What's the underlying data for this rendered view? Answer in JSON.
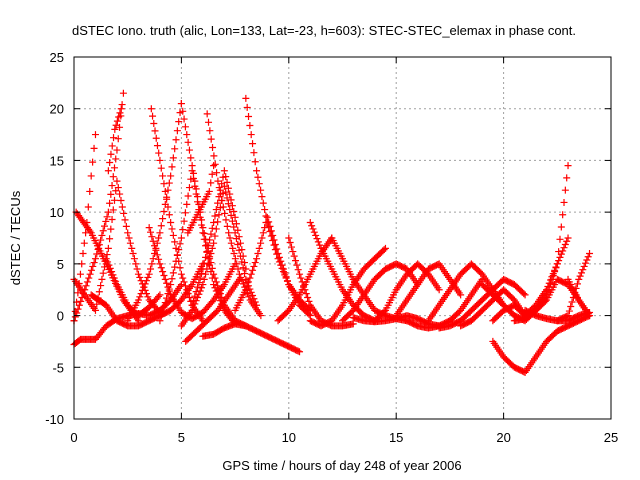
{
  "chart_data": {
    "type": "scatter",
    "title": "dSTEC Iono. truth (alic, Lon=133, Lat=-23, h=603): STEC-STEC_elemax in phase cont.",
    "xlabel": "GPS time / hours of day 248 of year 2006",
    "ylabel": "dSTEC  / TECUs",
    "xlim": [
      0,
      25
    ],
    "ylim": [
      -10,
      25
    ],
    "xticks": [
      0,
      5,
      10,
      15,
      20,
      25
    ],
    "yticks": [
      -10,
      -5,
      0,
      5,
      10,
      15,
      20,
      25
    ],
    "grid": true,
    "marker": "+",
    "color": "#ff0000",
    "series": [
      {
        "x": [
          0.0,
          0.3,
          0.6,
          0.8,
          1.0
        ],
        "y": [
          -0.5,
          4.0,
          9.0,
          13.5,
          17.5
        ]
      },
      {
        "x": [
          0.0,
          0.5,
          1.0,
          1.6,
          2.0,
          2.3
        ],
        "y": [
          -0.5,
          2.5,
          5.5,
          10.0,
          16.0,
          21.5
        ]
      },
      {
        "x": [
          1.6,
          1.9,
          2.2
        ],
        "y": [
          14.0,
          18.0,
          20.0
        ]
      },
      {
        "x": [
          0.1,
          0.8,
          1.5,
          2.3,
          3.0
        ],
        "y": [
          10.0,
          8.0,
          5.0,
          1.5,
          -0.5
        ]
      },
      {
        "x": [
          0.0,
          0.5,
          1.0,
          1.6,
          2.0,
          2.5,
          3.0,
          3.5,
          4.0
        ],
        "y": [
          3.5,
          2.0,
          0.5,
          6.5,
          13.0,
          8.0,
          4.0,
          1.5,
          0.3
        ]
      },
      {
        "x": [
          0.0,
          0.3,
          1.0,
          1.5,
          2.0,
          2.5,
          3.0,
          3.5,
          4.0,
          4.5,
          5.0
        ],
        "y": [
          -2.8,
          -2.3,
          -2.3,
          -1.0,
          -0.3,
          0.0,
          0.2,
          0.0,
          0.5,
          1.5,
          3.0
        ]
      },
      {
        "x": [
          1.5,
          2.0,
          2.5,
          3.0,
          3.5,
          4.0
        ],
        "y": [
          5.5,
          3.0,
          1.0,
          0.0,
          0.8,
          2.0
        ]
      },
      {
        "x": [
          0.8,
          1.5,
          2.0,
          2.5,
          3.0,
          3.5,
          4.0,
          4.5,
          5.0,
          5.5,
          6.0
        ],
        "y": [
          2.0,
          1.0,
          -0.5,
          -1.0,
          -1.0,
          -0.5,
          0.0,
          0.5,
          1.5,
          3.0,
          5.0
        ]
      },
      {
        "x": [
          2.5,
          3.0,
          3.5,
          4.0,
          4.5,
          5.0
        ],
        "y": [
          -0.5,
          1.5,
          4.0,
          8.0,
          13.5,
          20.5
        ]
      },
      {
        "x": [
          3.6,
          4.0,
          4.5,
          5.0,
          5.5,
          6.0
        ],
        "y": [
          20.0,
          15.0,
          9.0,
          4.0,
          1.0,
          -0.5
        ]
      },
      {
        "x": [
          3.5,
          4.0,
          4.5,
          5.0,
          5.5,
          6.0,
          6.5,
          7.0,
          7.5
        ],
        "y": [
          8.5,
          5.0,
          2.0,
          0.3,
          -0.3,
          0.3,
          1.5,
          3.0,
          5.0
        ]
      },
      {
        "x": [
          4.0,
          4.5,
          5.0,
          5.5,
          6.0,
          6.5,
          7.0,
          7.5
        ],
        "y": [
          -0.5,
          3.0,
          7.5,
          14.0,
          8.0,
          3.0,
          0.5,
          -0.8
        ]
      },
      {
        "x": [
          5.0,
          5.5,
          6.0,
          6.5,
          7.0,
          7.5,
          8.0
        ],
        "y": [
          20.5,
          14.5,
          8.5,
          4.0,
          1.0,
          -0.5,
          -1.0
        ]
      },
      {
        "x": [
          5.0,
          5.5,
          6.0,
          6.5,
          7.0,
          7.5,
          8.0,
          8.5
        ],
        "y": [
          -1.0,
          0.5,
          3.0,
          7.0,
          12.5,
          8.0,
          3.5,
          1.0
        ]
      },
      {
        "x": [
          5.5,
          6.0,
          6.5,
          7.0,
          7.5,
          8.0
        ],
        "y": [
          1.0,
          4.5,
          9.0,
          14.0,
          9.5,
          4.5
        ]
      },
      {
        "x": [
          6.2,
          6.7,
          7.2,
          7.7,
          8.2,
          8.7
        ],
        "y": [
          19.5,
          13.0,
          8.0,
          4.0,
          1.5,
          0.0
        ]
      },
      {
        "x": [
          5.3,
          5.8,
          6.3,
          6.5
        ],
        "y": [
          8.0,
          10.0,
          12.0,
          14.5
        ]
      },
      {
        "x": [
          5.2,
          5.7,
          6.2,
          6.7,
          7.2,
          7.7
        ],
        "y": [
          -2.5,
          -1.5,
          -0.5,
          0.5,
          2.0,
          3.5
        ]
      },
      {
        "x": [
          6.0,
          6.5,
          7.0,
          7.5,
          8.0,
          8.5,
          9.0,
          9.5,
          10.0,
          10.5
        ],
        "y": [
          -2.0,
          -1.8,
          -1.2,
          -0.8,
          -1.0,
          -1.5,
          -2.0,
          -2.5,
          -3.0,
          -3.5
        ]
      },
      {
        "x": [
          8.0,
          8.5,
          9.0,
          9.5,
          10.0,
          10.5,
          11.0
        ],
        "y": [
          21.0,
          14.0,
          9.0,
          5.5,
          3.0,
          1.5,
          0.5
        ]
      },
      {
        "x": [
          7.5,
          8.0,
          8.5,
          9.0,
          9.5,
          10.0,
          10.5,
          11.0
        ],
        "y": [
          0.5,
          2.5,
          5.5,
          9.5,
          6.0,
          3.0,
          1.0,
          0.0
        ]
      },
      {
        "x": [
          9.5,
          10.0,
          10.5,
          11.0,
          11.5,
          12.0
        ],
        "y": [
          -0.5,
          0.5,
          2.0,
          4.0,
          6.0,
          7.5
        ]
      },
      {
        "x": [
          10.0,
          10.5,
          11.0,
          11.5,
          12.0,
          12.5,
          13.0
        ],
        "y": [
          7.5,
          4.0,
          1.0,
          -0.5,
          -1.0,
          -1.0,
          -0.8
        ]
      },
      {
        "x": [
          11.0,
          11.5,
          12.0,
          12.5,
          13.0,
          13.5,
          14.0
        ],
        "y": [
          9.0,
          6.5,
          4.5,
          2.5,
          1.0,
          0.0,
          -0.5
        ]
      },
      {
        "x": [
          12.0,
          12.5,
          13.0,
          13.5,
          14.0,
          14.5,
          15.0,
          15.5
        ],
        "y": [
          7.5,
          5.5,
          3.5,
          2.0,
          0.5,
          0.0,
          -0.3,
          -0.5
        ]
      },
      {
        "x": [
          11.0,
          11.5,
          12.0,
          12.5,
          13.0,
          13.5,
          14.0,
          14.5
        ],
        "y": [
          -0.5,
          -1.0,
          -0.5,
          1.0,
          3.0,
          4.5,
          5.5,
          6.5
        ]
      },
      {
        "x": [
          12.5,
          13.0,
          13.5,
          14.0,
          14.5,
          15.0,
          15.5,
          16.0
        ],
        "y": [
          -0.5,
          0.5,
          2.0,
          3.5,
          4.5,
          5.0,
          4.5,
          3.0
        ]
      },
      {
        "x": [
          14.0,
          14.5,
          15.0,
          15.5,
          16.0,
          16.5,
          17.0
        ],
        "y": [
          -0.5,
          0.5,
          2.5,
          4.0,
          5.0,
          4.0,
          2.5
        ]
      },
      {
        "x": [
          15.0,
          15.5,
          16.0,
          16.5,
          17.0,
          17.5,
          18.0
        ],
        "y": [
          0.0,
          1.5,
          3.0,
          4.5,
          5.0,
          3.5,
          2.0
        ]
      },
      {
        "x": [
          13.0,
          13.5,
          14.0,
          14.5,
          15.0,
          15.5,
          16.0,
          16.5,
          17.0
        ],
        "y": [
          -0.2,
          -0.5,
          -0.6,
          -0.5,
          -0.3,
          0.0,
          -0.3,
          -0.8,
          -1.0
        ]
      },
      {
        "x": [
          15.5,
          16.0,
          16.5,
          17.0,
          17.5,
          18.0,
          18.5,
          19.0
        ],
        "y": [
          -0.5,
          -1.0,
          -1.2,
          -1.0,
          -0.5,
          0.5,
          2.0,
          3.5
        ]
      },
      {
        "x": [
          16.5,
          17.0,
          17.5,
          18.0,
          18.5,
          19.0,
          19.5,
          20.0
        ],
        "y": [
          -0.5,
          1.0,
          2.5,
          4.0,
          5.0,
          4.0,
          2.5,
          1.0
        ]
      },
      {
        "x": [
          17.0,
          17.5,
          18.0,
          18.5,
          19.0,
          19.5,
          20.0,
          20.5,
          21.0
        ],
        "y": [
          -1.2,
          -1.0,
          -0.5,
          0.5,
          1.5,
          2.5,
          3.5,
          3.0,
          2.0
        ]
      },
      {
        "x": [
          18.0,
          18.5,
          19.0,
          19.5,
          20.0,
          20.5,
          21.0
        ],
        "y": [
          -1.0,
          -0.5,
          0.5,
          1.5,
          2.5,
          1.5,
          0.0
        ]
      },
      {
        "x": [
          19.0,
          19.5,
          20.0,
          20.5,
          21.0,
          21.5,
          22.0,
          22.5,
          23.0
        ],
        "y": [
          3.0,
          2.0,
          1.0,
          0.0,
          -0.5,
          0.5,
          2.0,
          5.0,
          14.5
        ]
      },
      {
        "x": [
          19.5,
          20.0,
          20.5,
          21.0,
          21.5,
          22.0,
          22.5,
          23.0
        ],
        "y": [
          -0.5,
          0.5,
          1.0,
          0.0,
          1.0,
          2.5,
          5.0,
          7.5
        ]
      },
      {
        "x": [
          19.5,
          20.0,
          20.5,
          21.0,
          21.5,
          22.0,
          22.5,
          23.0,
          23.5,
          24.0
        ],
        "y": [
          -2.5,
          -4.0,
          -5.0,
          -5.5,
          -4.0,
          -2.5,
          -1.5,
          -1.0,
          -0.5,
          0.0
        ]
      },
      {
        "x": [
          20.5,
          21.0,
          21.5,
          22.0,
          22.5,
          23.0,
          23.5,
          24.0
        ],
        "y": [
          -0.5,
          -0.3,
          0.5,
          1.5,
          3.5,
          3.0,
          1.5,
          0.0
        ]
      },
      {
        "x": [
          21.0,
          21.5,
          22.0,
          22.5,
          23.0,
          23.5,
          24.0
        ],
        "y": [
          0.5,
          0.0,
          -0.3,
          -0.5,
          -0.5,
          0.0,
          0.3
        ]
      },
      {
        "x": [
          22.5,
          23.0,
          23.5,
          24.0
        ],
        "y": [
          -0.5,
          0.0,
          3.5,
          6.0
        ]
      },
      {
        "x": [
          23.0,
          23.5,
          24.0
        ],
        "y": [
          3.5,
          1.5,
          0.0
        ]
      }
    ]
  }
}
